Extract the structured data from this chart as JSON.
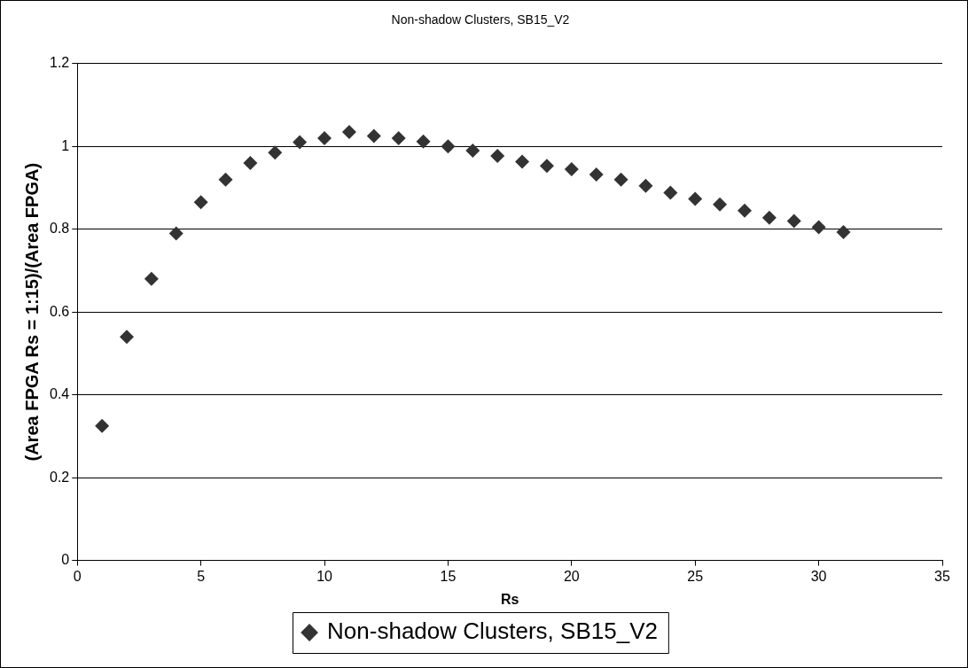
{
  "chart_data": {
    "type": "scatter",
    "title": "Non-shadow Clusters, SB15_V2",
    "xlabel": "Rs",
    "ylabel": "(Area FPGA Rs = 1:15)/(Area FPGA)",
    "x": [
      1,
      2,
      3,
      4,
      5,
      6,
      7,
      8,
      9,
      10,
      11,
      12,
      13,
      14,
      15,
      16,
      17,
      18,
      19,
      20,
      21,
      22,
      23,
      24,
      25,
      26,
      27,
      28,
      29,
      30,
      31
    ],
    "series": [
      {
        "name": "Non-shadow Clusters, SB15_V2",
        "color": "#333333",
        "values": [
          0.325,
          0.54,
          0.68,
          0.79,
          0.865,
          0.92,
          0.96,
          0.985,
          1.01,
          1.02,
          1.035,
          1.025,
          1.02,
          1.012,
          1.0,
          0.99,
          0.977,
          0.963,
          0.953,
          0.945,
          0.932,
          0.92,
          0.905,
          0.888,
          0.873,
          0.86,
          0.845,
          0.828,
          0.82,
          0.805,
          0.793
        ]
      }
    ],
    "xlim": [
      0,
      35
    ],
    "xticks": [
      0,
      5,
      10,
      15,
      20,
      25,
      30,
      35
    ],
    "ylim": [
      0,
      1.2
    ],
    "yticks": [
      0,
      0.2,
      0.4,
      0.6,
      0.8,
      1,
      1.2
    ],
    "grid": "y",
    "legend": "bottom",
    "marker": "diamond"
  }
}
